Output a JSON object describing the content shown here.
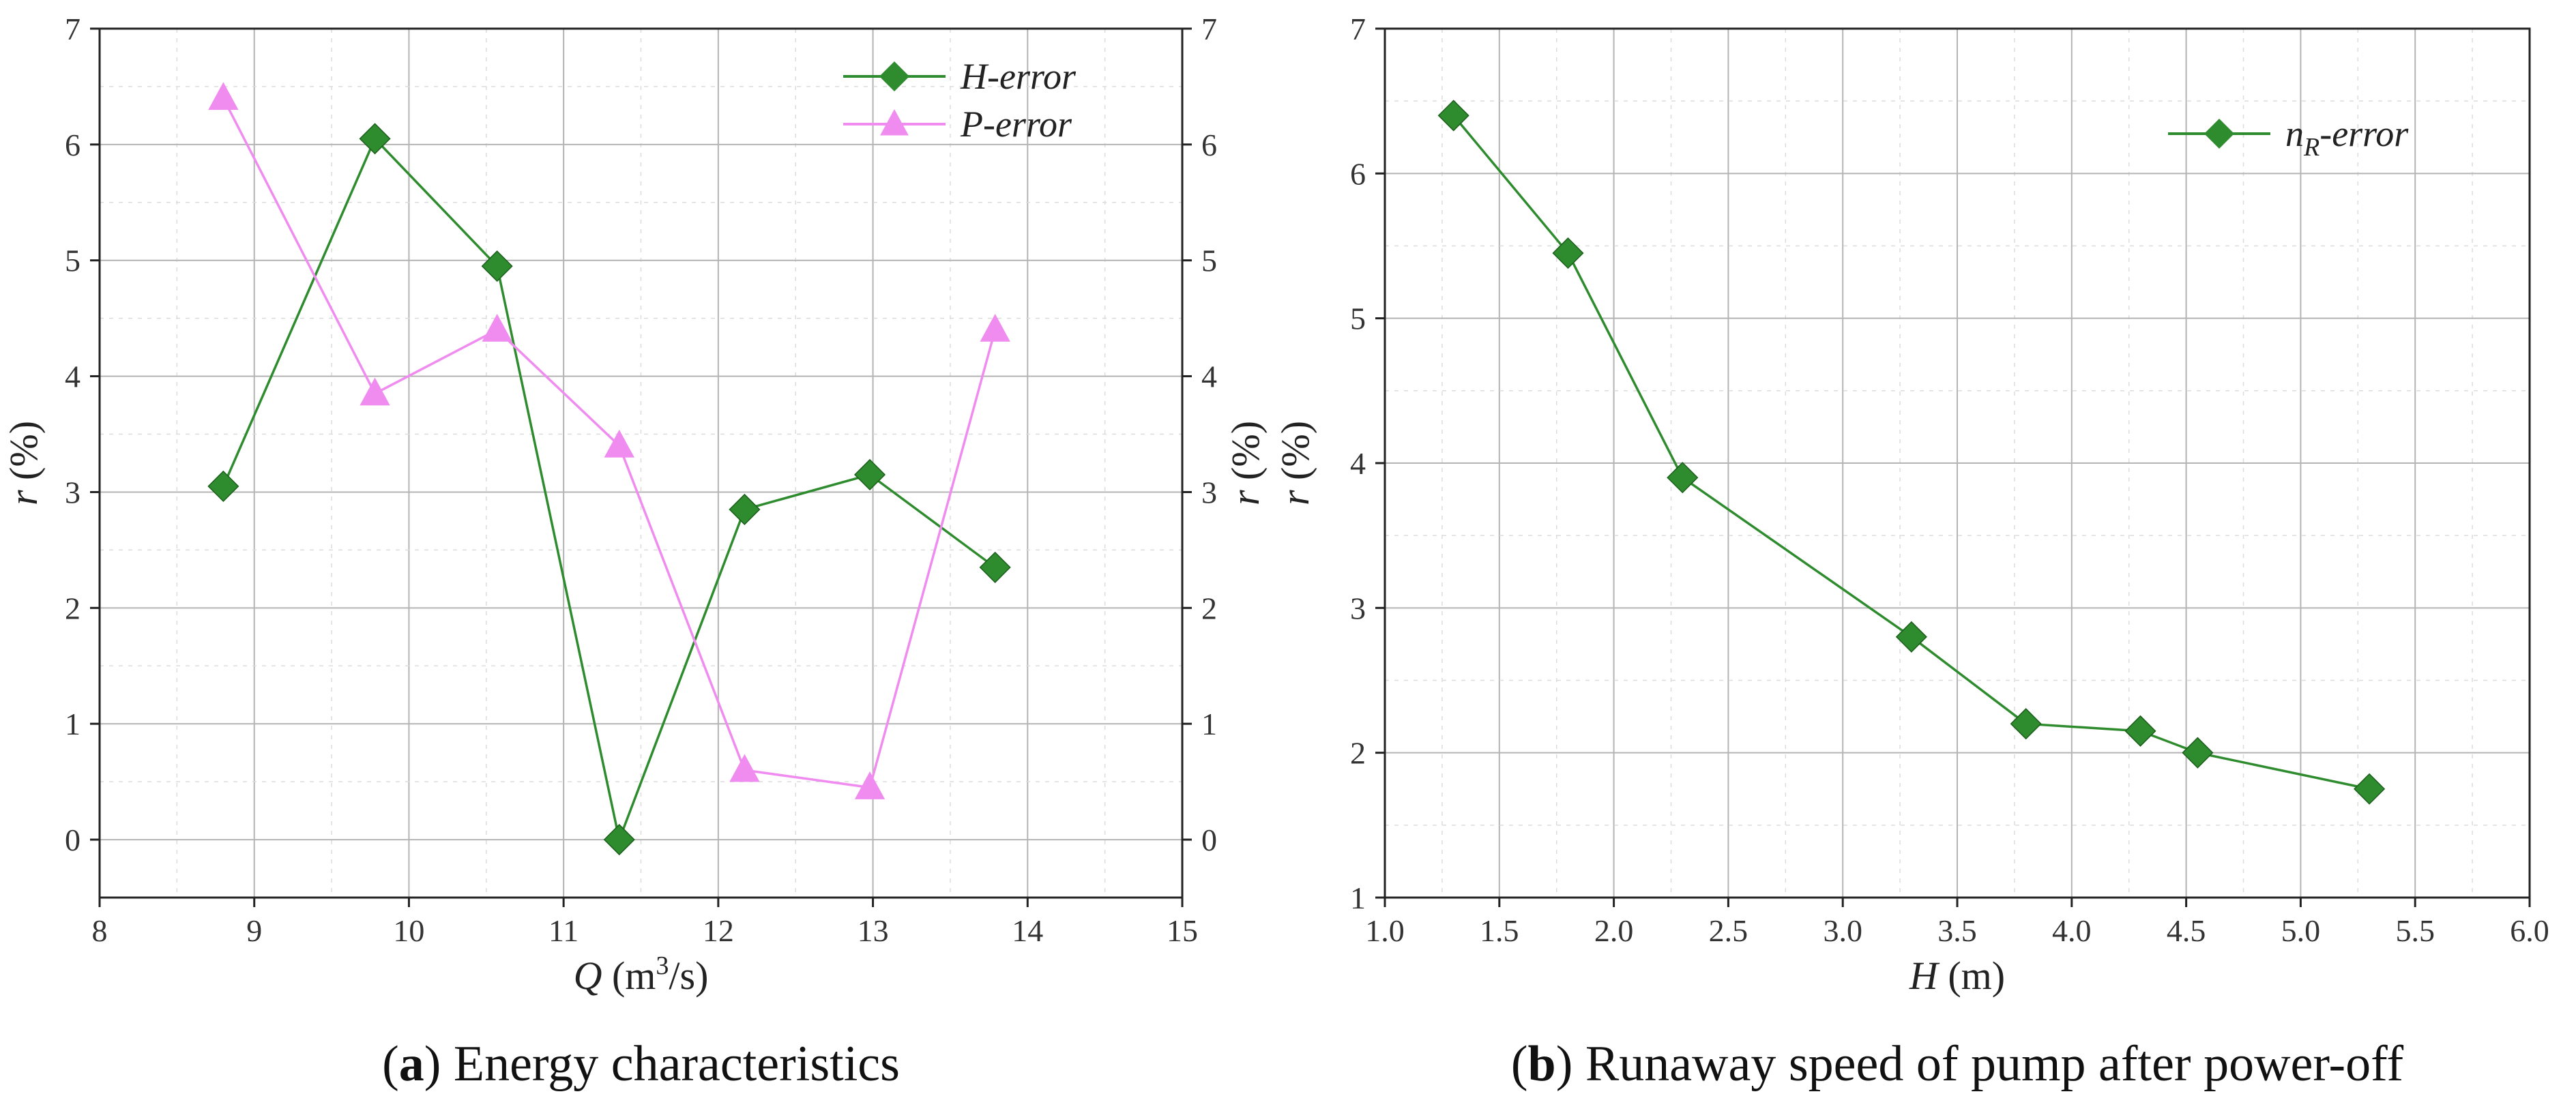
{
  "chart_data": [
    {
      "id": "a",
      "type": "line",
      "xlabel": "Q (m³/s)",
      "xlabel_var": "Q",
      "xlabel_unit": " (m",
      "xlabel_sup": "3",
      "xlabel_unit2": "/s)",
      "ylabel": "r (%)",
      "ylabel_var": "r",
      "ylabel_unit": " (%)",
      "xlim": [
        8,
        15
      ],
      "ylim": [
        -0.5,
        7
      ],
      "xticks": [
        "8",
        "9",
        "10",
        "11",
        "12",
        "13",
        "14",
        "15"
      ],
      "yticks": [
        "0",
        "1",
        "2",
        "3",
        "4",
        "5",
        "6",
        "7"
      ],
      "right_axis": true,
      "grid": true,
      "legend_position": "top-right",
      "series": [
        {
          "name": "H-error",
          "color": "#2e8b2e",
          "marker": "diamond",
          "points": [
            [
              8.8,
              3.05
            ],
            [
              9.78,
              6.05
            ],
            [
              10.57,
              4.95
            ],
            [
              11.36,
              0.0
            ],
            [
              12.17,
              2.85
            ],
            [
              12.98,
              3.15
            ],
            [
              13.79,
              2.35
            ]
          ]
        },
        {
          "name": "P-error",
          "color": "#f08cf0",
          "marker": "triangle",
          "points": [
            [
              8.8,
              6.4
            ],
            [
              9.78,
              3.85
            ],
            [
              10.57,
              4.4
            ],
            [
              11.36,
              3.4
            ],
            [
              12.17,
              0.6
            ],
            [
              12.98,
              0.45
            ],
            [
              13.79,
              4.4
            ]
          ]
        }
      ],
      "caption_letter": "a",
      "caption_text": " Energy characteristics"
    },
    {
      "id": "b",
      "type": "line",
      "xlabel": "H (m)",
      "xlabel_var": "H",
      "xlabel_unit": " (m)",
      "ylabel": "r (%)",
      "ylabel_var": "r",
      "ylabel_unit": " (%)",
      "xlim": [
        1.0,
        6.0
      ],
      "ylim": [
        1,
        7
      ],
      "xticks": [
        "1.0",
        "1.5",
        "2.0",
        "2.5",
        "3.0",
        "3.5",
        "4.0",
        "4.5",
        "5.0",
        "5.5",
        "6.0"
      ],
      "yticks": [
        "1",
        "2",
        "3",
        "4",
        "5",
        "6",
        "7"
      ],
      "right_axis": false,
      "grid": true,
      "legend_position": "top-right",
      "series": [
        {
          "name": "nR-error",
          "name_main": "n",
          "name_sub": "R",
          "name_rest": "-error",
          "color": "#2e8b2e",
          "marker": "diamond",
          "points": [
            [
              1.3,
              6.4
            ],
            [
              1.8,
              5.45
            ],
            [
              2.3,
              3.9
            ],
            [
              3.3,
              2.8
            ],
            [
              3.8,
              2.2
            ],
            [
              4.3,
              2.15
            ],
            [
              4.55,
              2.0
            ],
            [
              5.3,
              1.75
            ]
          ]
        }
      ],
      "caption_letter": "b",
      "caption_text": " Runaway speed of pump after power-off"
    }
  ]
}
